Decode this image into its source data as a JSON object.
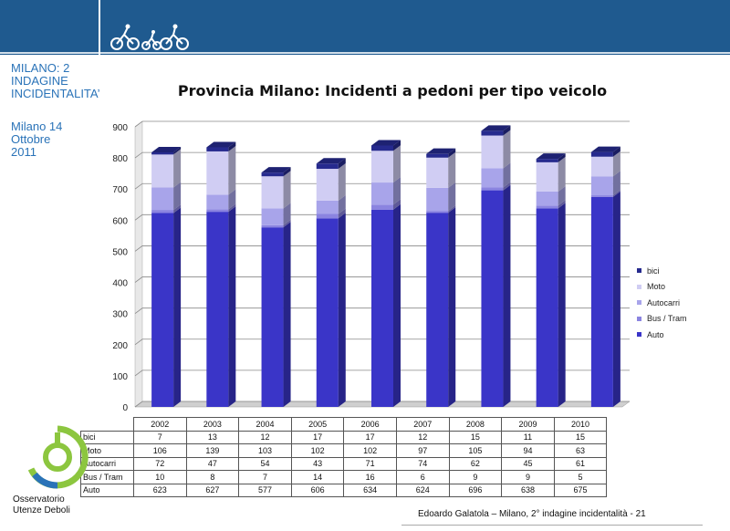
{
  "sidebar": {
    "title": "MILANO: 2\nINDAGINE\nINCIDENTALITA’",
    "date": "Milano 14\nOttobre\n2011"
  },
  "logo": {
    "text": "Osservatorio\nUtenze Deboli"
  },
  "footer": {
    "text": "Edoardo Galatola – Milano, 2° indagine incidentalità - 21"
  },
  "colors": {
    "header": "#1f5a8f",
    "Auto": "#3a35c8",
    "Bus / Tram": "#8b84e0",
    "Autocarri": "#a8a4ea",
    "Moto": "#d0cdf3",
    "bici": "#262a8e"
  },
  "chart_data": {
    "type": "bar",
    "stacked": true,
    "title": "Provincia Milano: Incidenti a pedoni per tipo veicolo",
    "categories": [
      "2002",
      "2003",
      "2004",
      "2005",
      "2006",
      "2007",
      "2008",
      "2009",
      "2010"
    ],
    "series": [
      {
        "name": "Auto",
        "values": [
          623,
          627,
          577,
          606,
          634,
          624,
          696,
          638,
          675
        ]
      },
      {
        "name": "Bus / Tram",
        "values": [
          10,
          8,
          7,
          14,
          16,
          6,
          9,
          9,
          5
        ]
      },
      {
        "name": "Autocarri",
        "values": [
          72,
          47,
          54,
          43,
          71,
          74,
          62,
          45,
          61
        ]
      },
      {
        "name": "Moto",
        "values": [
          106,
          139,
          103,
          102,
          102,
          97,
          105,
          94,
          63
        ]
      },
      {
        "name": "bici",
        "values": [
          7,
          13,
          12,
          17,
          17,
          12,
          15,
          11,
          15
        ]
      }
    ],
    "legend_order": [
      "bici",
      "Moto",
      "Autocarri",
      "Bus / Tram",
      "Auto"
    ],
    "table_rows": [
      "bici",
      "Moto",
      "Autocarri",
      "Bus / Tram",
      "Auto"
    ],
    "ylim": [
      0,
      900
    ],
    "yticks": [
      0,
      100,
      200,
      300,
      400,
      500,
      600,
      700,
      800,
      900
    ],
    "grid": true,
    "legend_position": "right"
  }
}
